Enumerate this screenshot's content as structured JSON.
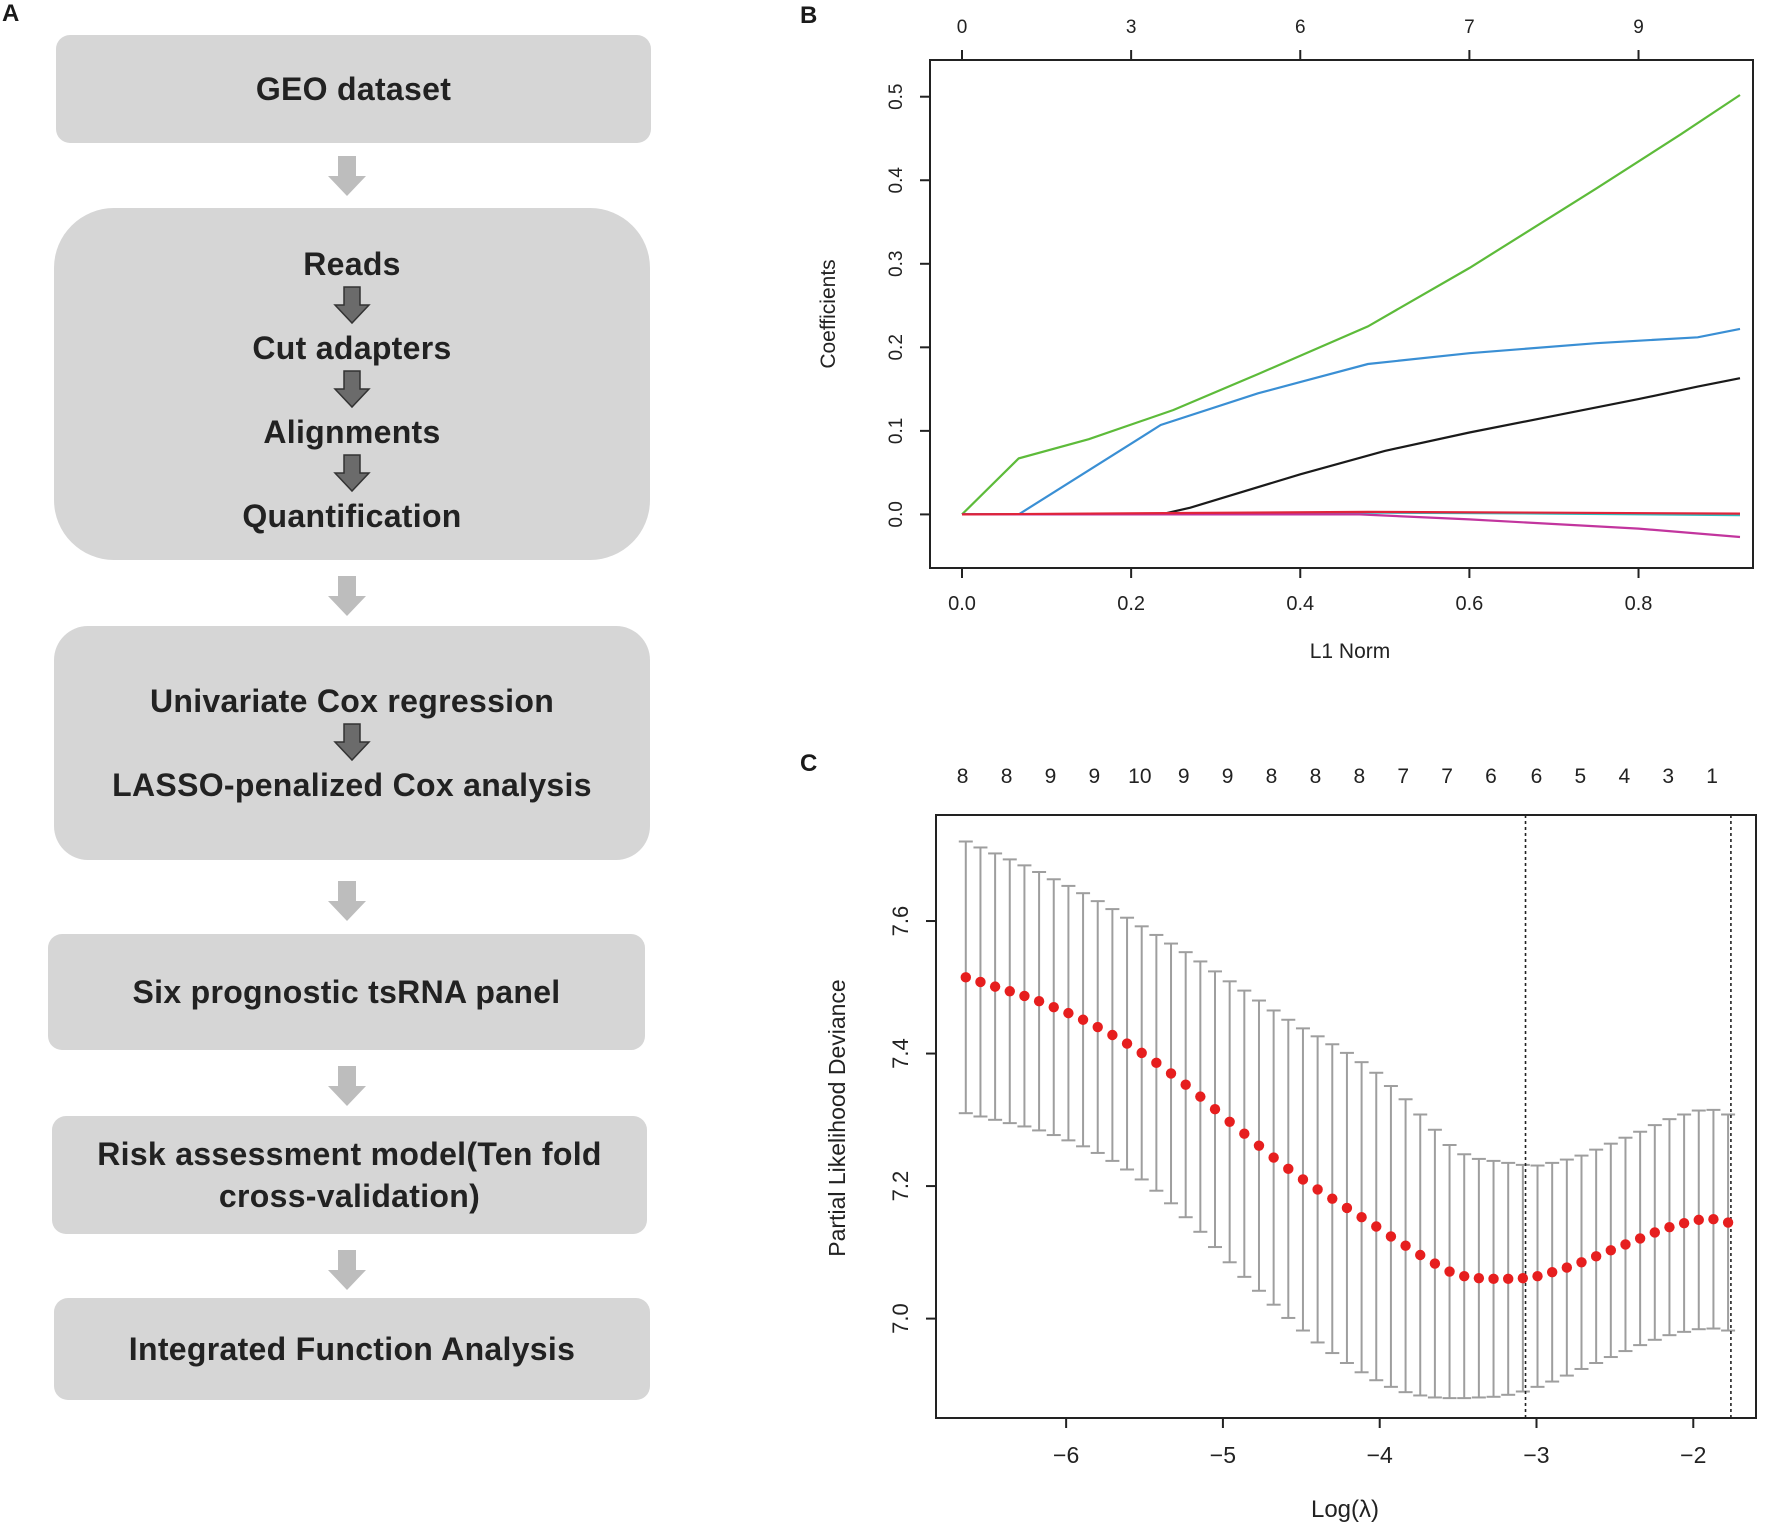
{
  "panels": {
    "a": "A",
    "b": "B",
    "c": "C"
  },
  "flow": {
    "geo": "GEO dataset",
    "steps": [
      "Reads",
      "Cut adapters",
      "Alignments",
      "Quantification"
    ],
    "cox": [
      "Univariate Cox regression",
      "LASSO-penalized Cox analysis"
    ],
    "panel": "Six prognostic tsRNA panel",
    "risk": [
      "Risk assessment model(Ten fold",
      "cross-validation)"
    ],
    "integrated": "Integrated Function Analysis"
  },
  "colors": {
    "box_bg": "#d6d6d6",
    "arrow_grey": "#bdbdbd",
    "arrow_dark": "#6b6b6b",
    "green": "#5dbb3a",
    "blue": "#3a8fd4",
    "black": "#1a1a1a",
    "cyan": "#2fbfbf",
    "magenta": "#c2359e",
    "red": "#e0243a",
    "errbar": "#9e9e9e",
    "point": "#e61e1e"
  },
  "chart_data": [
    {
      "type": "line",
      "panel": "B",
      "xlabel": "L1 Norm",
      "ylabel": "Coefficients",
      "xlim": [
        0,
        0.92
      ],
      "ylim": [
        -0.045,
        0.52
      ],
      "x_ticks": [
        "0.0",
        "0.2",
        "0.4",
        "0.6",
        "0.8"
      ],
      "x_tick_values": [
        0.0,
        0.2,
        0.4,
        0.6,
        0.8
      ],
      "y_ticks": [
        "0.0",
        "0.1",
        "0.2",
        "0.3",
        "0.4",
        "0.5"
      ],
      "y_tick_values": [
        0.0,
        0.1,
        0.2,
        0.3,
        0.4,
        0.5
      ],
      "top_ticks": [
        "0",
        "3",
        "6",
        "7",
        "9"
      ],
      "top_tick_positions": [
        0.0,
        0.2,
        0.4,
        0.6,
        0.8
      ],
      "series": [
        {
          "name": "green",
          "color": "#5dbb3a",
          "points": [
            [
              0,
              0
            ],
            [
              0.067,
              0.067
            ],
            [
              0.15,
              0.09
            ],
            [
              0.25,
              0.125
            ],
            [
              0.35,
              0.168
            ],
            [
              0.48,
              0.225
            ],
            [
              0.6,
              0.295
            ],
            [
              0.75,
              0.39
            ],
            [
              0.85,
              0.455
            ],
            [
              0.92,
              0.502
            ]
          ]
        },
        {
          "name": "blue",
          "color": "#3a8fd4",
          "points": [
            [
              0,
              0
            ],
            [
              0.067,
              0
            ],
            [
              0.235,
              0.107
            ],
            [
              0.35,
              0.145
            ],
            [
              0.48,
              0.18
            ],
            [
              0.6,
              0.193
            ],
            [
              0.75,
              0.205
            ],
            [
              0.87,
              0.212
            ],
            [
              0.92,
              0.222
            ]
          ]
        },
        {
          "name": "black",
          "color": "#1a1a1a",
          "points": [
            [
              0,
              0
            ],
            [
              0.235,
              0
            ],
            [
              0.27,
              0.008
            ],
            [
              0.4,
              0.048
            ],
            [
              0.5,
              0.076
            ],
            [
              0.6,
              0.098
            ],
            [
              0.7,
              0.118
            ],
            [
              0.8,
              0.138
            ],
            [
              0.87,
              0.153
            ],
            [
              0.92,
              0.163
            ]
          ]
        },
        {
          "name": "cyan",
          "color": "#2fbfbf",
          "points": [
            [
              0,
              0
            ],
            [
              0.5,
              0.002
            ],
            [
              0.7,
              0.001
            ],
            [
              0.92,
              -0.001
            ]
          ]
        },
        {
          "name": "magenta",
          "color": "#c2359e",
          "points": [
            [
              0,
              0
            ],
            [
              0.47,
              0
            ],
            [
              0.6,
              -0.006
            ],
            [
              0.8,
              -0.017
            ],
            [
              0.92,
              -0.027
            ]
          ]
        },
        {
          "name": "red",
          "color": "#e0243a",
          "points": [
            [
              0,
              0
            ],
            [
              0.48,
              0.003
            ],
            [
              0.7,
              0.002
            ],
            [
              0.92,
              0.001
            ]
          ]
        }
      ]
    },
    {
      "type": "scatter",
      "panel": "C",
      "xlabel": "Log(λ)",
      "ylabel": "Partial Likelihood Deviance",
      "xlim": [
        -6.83,
        -1.6
      ],
      "ylim": [
        6.85,
        7.76
      ],
      "x_ticks": [
        "−6",
        "−5",
        "−4",
        "−3",
        "−2"
      ],
      "x_tick_values": [
        -6,
        -5,
        -4,
        -3,
        -2
      ],
      "y_ticks": [
        "7.0",
        "7.2",
        "7.4",
        "7.6"
      ],
      "y_tick_values": [
        7.0,
        7.2,
        7.4,
        7.6
      ],
      "top_counts": [
        "8",
        "8",
        "9",
        "9",
        "10",
        "9",
        "9",
        "8",
        "8",
        "8",
        "7",
        "7",
        "6",
        "6",
        "5",
        "4",
        "3",
        "1"
      ],
      "top_count_positions": [
        -6.66,
        -6.38,
        -6.1,
        -5.82,
        -5.53,
        -5.25,
        -4.97,
        -4.69,
        -4.41,
        -4.13,
        -3.85,
        -3.57,
        -3.29,
        -3.0,
        -2.72,
        -2.44,
        -2.16,
        -1.88
      ],
      "vlines": [
        -3.07,
        -1.76
      ],
      "lambda_start": -6.64,
      "lambda_step": 0.0935,
      "deviance": [
        7.515,
        7.508,
        7.501,
        7.494,
        7.487,
        7.479,
        7.47,
        7.461,
        7.451,
        7.44,
        7.428,
        7.415,
        7.401,
        7.386,
        7.37,
        7.353,
        7.335,
        7.316,
        7.297,
        7.279,
        7.261,
        7.243,
        7.226,
        7.21,
        7.195,
        7.181,
        7.167,
        7.153,
        7.139,
        7.124,
        7.11,
        7.096,
        7.083,
        7.071,
        7.064,
        7.061,
        7.06,
        7.06,
        7.061,
        7.064,
        7.07,
        7.077,
        7.085,
        7.094,
        7.103,
        7.112,
        7.121,
        7.13,
        7.138,
        7.144,
        7.149,
        7.15,
        7.145
      ],
      "lower": [
        7.31,
        7.305,
        7.3,
        7.295,
        7.29,
        7.284,
        7.277,
        7.269,
        7.26,
        7.25,
        7.238,
        7.225,
        7.21,
        7.193,
        7.174,
        7.153,
        7.131,
        7.108,
        7.085,
        7.063,
        7.042,
        7.021,
        7.001,
        6.982,
        6.964,
        6.948,
        6.933,
        6.919,
        6.907,
        6.897,
        6.889,
        6.884,
        6.881,
        6.88,
        6.88,
        6.881,
        6.882,
        6.885,
        6.89,
        6.897,
        6.905,
        6.914,
        6.924,
        6.933,
        6.942,
        6.951,
        6.96,
        6.968,
        6.975,
        6.98,
        6.984,
        6.985,
        6.982
      ],
      "upper": [
        7.72,
        7.711,
        7.702,
        7.693,
        7.684,
        7.674,
        7.663,
        7.653,
        7.642,
        7.63,
        7.618,
        7.605,
        7.592,
        7.579,
        7.566,
        7.553,
        7.539,
        7.524,
        7.509,
        7.495,
        7.48,
        7.465,
        7.451,
        7.438,
        7.426,
        7.414,
        7.401,
        7.387,
        7.371,
        7.351,
        7.331,
        7.308,
        7.285,
        7.262,
        7.248,
        7.241,
        7.238,
        7.235,
        7.232,
        7.231,
        7.235,
        7.24,
        7.246,
        7.255,
        7.264,
        7.273,
        7.282,
        7.292,
        7.301,
        7.308,
        7.314,
        7.315,
        7.308
      ]
    }
  ]
}
